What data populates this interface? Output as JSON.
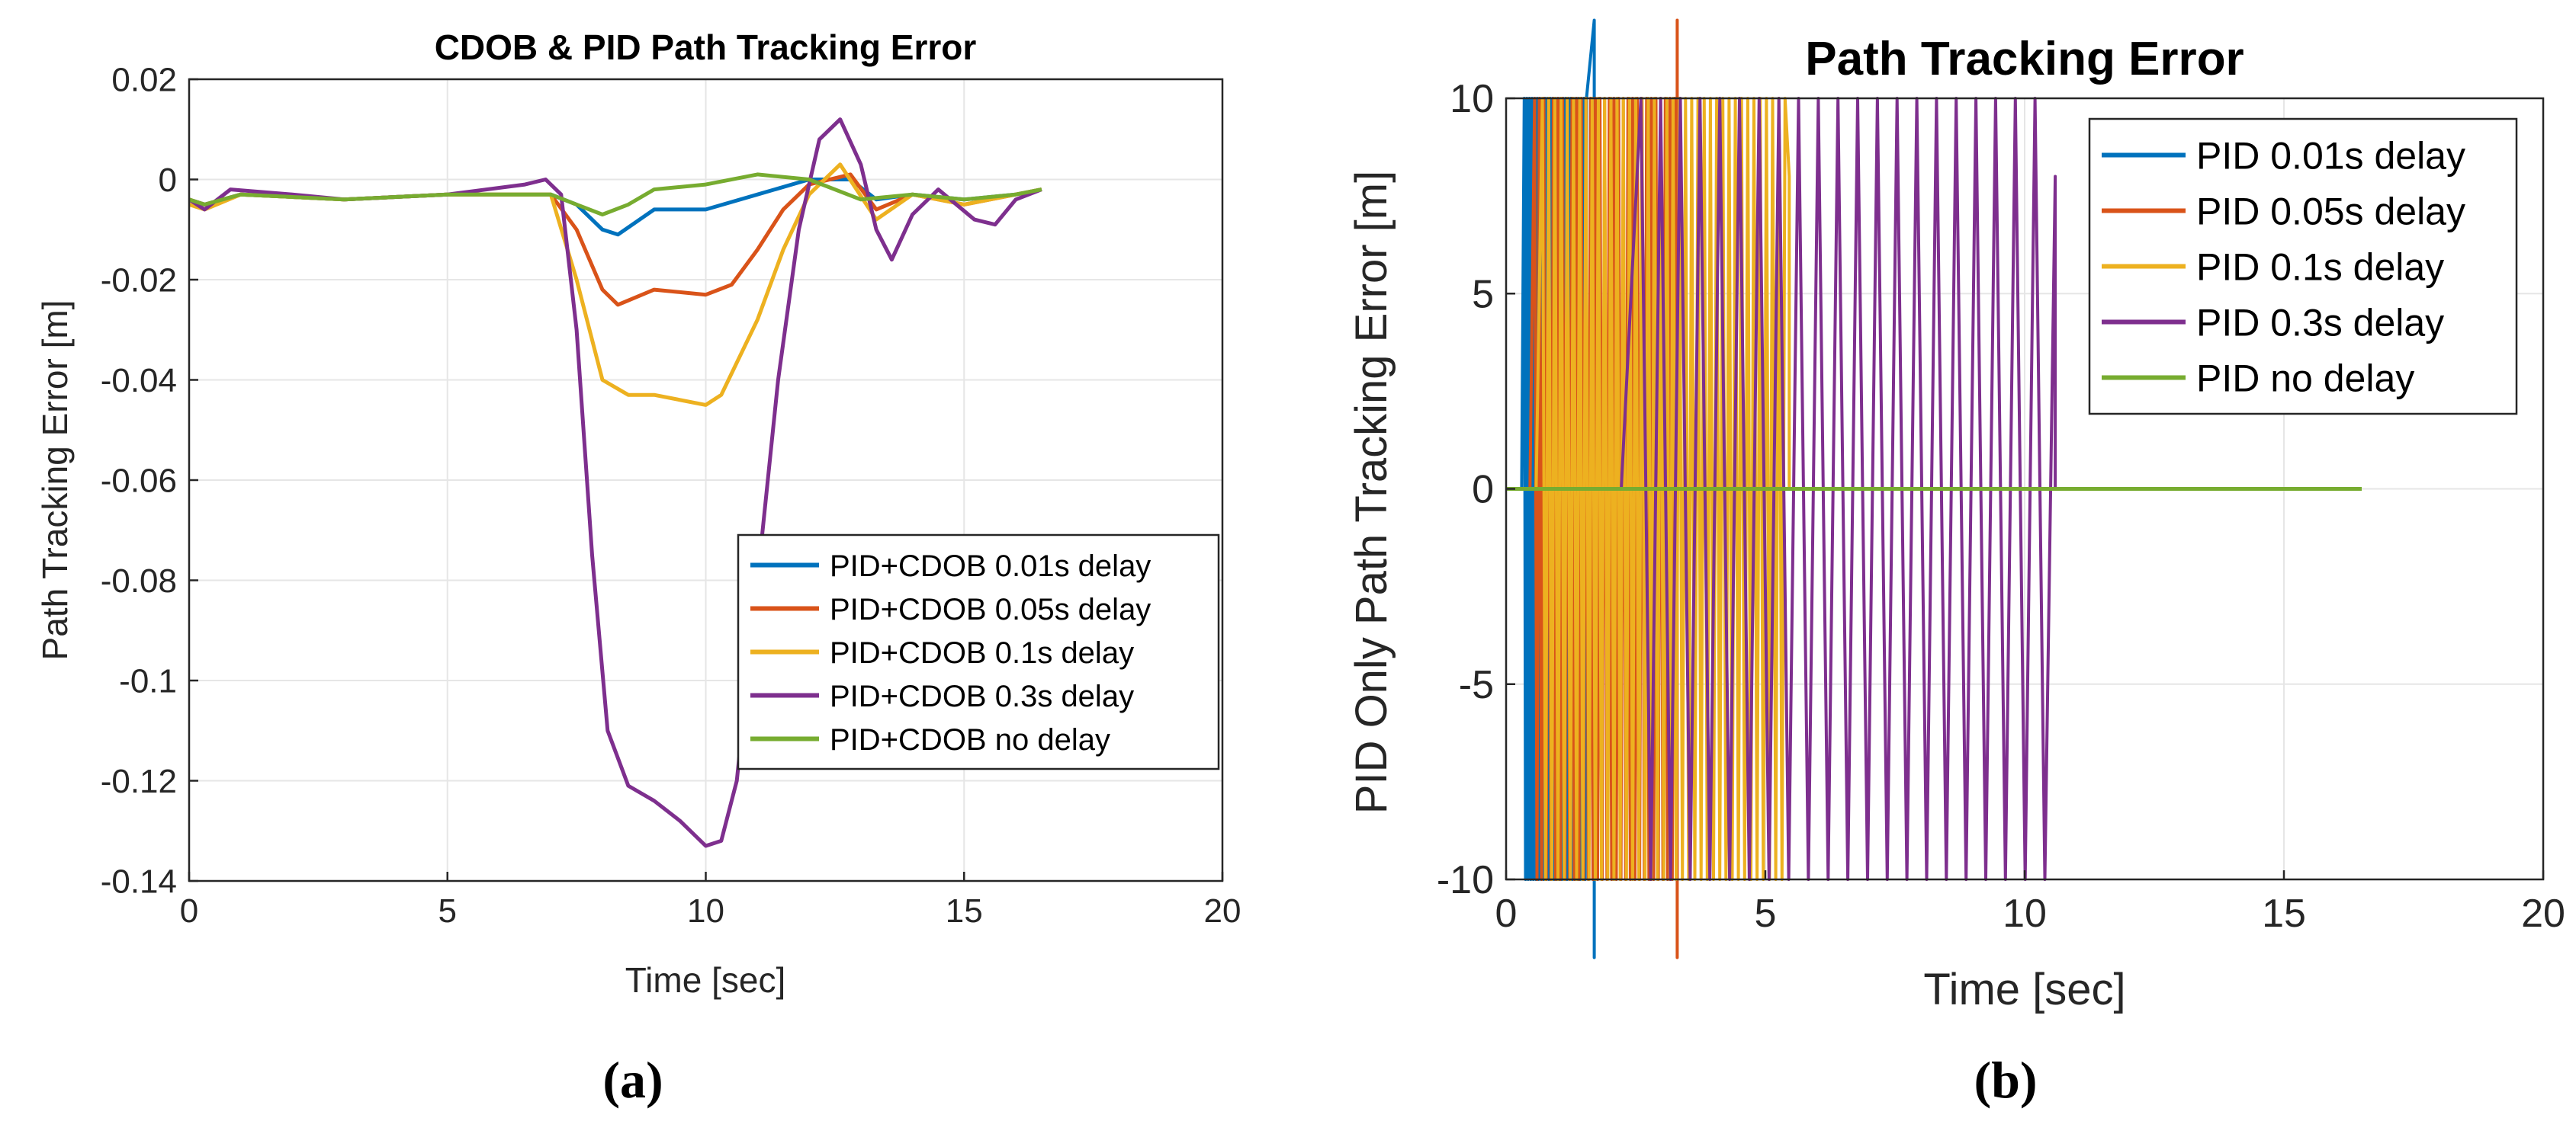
{
  "chart_data": [
    {
      "type": "line",
      "title": "CDOB & PID Path Tracking Error",
      "xlabel": "Time [sec]",
      "ylabel": "Path Tracking Error [m]",
      "xlim": [
        0,
        20
      ],
      "ylim": [
        -0.14,
        0.02
      ],
      "xticks": [
        0,
        5,
        10,
        15,
        20
      ],
      "xtick_labels": [
        "0",
        "5",
        "10",
        "15",
        "20"
      ],
      "yticks": [
        -0.14,
        -0.12,
        -0.1,
        -0.08,
        -0.06,
        -0.04,
        -0.02,
        0,
        0.02
      ],
      "ytick_labels": [
        "-0.14",
        "-0.12",
        "-0.1",
        "-0.08",
        "-0.06",
        "-0.04",
        "-0.02",
        "0",
        "0.02"
      ],
      "grid": true,
      "legend_position": "center-right",
      "caption": "(a)",
      "series": [
        {
          "name": "PID+CDOB 0.01s delay",
          "color": "#0072BD",
          "points": [
            [
              0,
              -0.004
            ],
            [
              0.3,
              -0.005
            ],
            [
              1,
              -0.003
            ],
            [
              3,
              -0.004
            ],
            [
              5,
              -0.003
            ],
            [
              7,
              -0.003
            ],
            [
              7.5,
              -0.005
            ],
            [
              8,
              -0.01
            ],
            [
              8.3,
              -0.011
            ],
            [
              9,
              -0.006
            ],
            [
              10,
              -0.006
            ],
            [
              11,
              -0.003
            ],
            [
              12,
              0.0
            ],
            [
              12.8,
              0.0
            ],
            [
              13.3,
              -0.004
            ],
            [
              14,
              -0.003
            ],
            [
              15,
              -0.004
            ],
            [
              16,
              -0.003
            ],
            [
              16.5,
              -0.002
            ]
          ]
        },
        {
          "name": "PID+CDOB 0.05s delay",
          "color": "#D95319",
          "points": [
            [
              0,
              -0.004
            ],
            [
              0.3,
              -0.005
            ],
            [
              1,
              -0.003
            ],
            [
              3,
              -0.004
            ],
            [
              5,
              -0.003
            ],
            [
              7,
              -0.003
            ],
            [
              7.5,
              -0.01
            ],
            [
              8,
              -0.022
            ],
            [
              8.3,
              -0.025
            ],
            [
              9,
              -0.022
            ],
            [
              10,
              -0.023
            ],
            [
              10.5,
              -0.021
            ],
            [
              11,
              -0.014
            ],
            [
              11.5,
              -0.006
            ],
            [
              12,
              -0.001
            ],
            [
              12.8,
              0.001
            ],
            [
              13.3,
              -0.006
            ],
            [
              14,
              -0.003
            ],
            [
              15,
              -0.005
            ],
            [
              16,
              -0.003
            ],
            [
              16.5,
              -0.002
            ]
          ]
        },
        {
          "name": "PID+CDOB 0.1s delay",
          "color": "#EDB120",
          "points": [
            [
              0,
              -0.005
            ],
            [
              0.3,
              -0.006
            ],
            [
              1,
              -0.003
            ],
            [
              3,
              -0.004
            ],
            [
              5,
              -0.003
            ],
            [
              7,
              -0.003
            ],
            [
              7.5,
              -0.02
            ],
            [
              8,
              -0.04
            ],
            [
              8.5,
              -0.043
            ],
            [
              9,
              -0.043
            ],
            [
              10,
              -0.045
            ],
            [
              10.3,
              -0.043
            ],
            [
              11,
              -0.028
            ],
            [
              11.5,
              -0.014
            ],
            [
              12,
              -0.003
            ],
            [
              12.6,
              0.003
            ],
            [
              13.3,
              -0.008
            ],
            [
              14,
              -0.003
            ],
            [
              15,
              -0.005
            ],
            [
              16,
              -0.003
            ],
            [
              16.5,
              -0.002
            ]
          ]
        },
        {
          "name": "PID+CDOB 0.3s delay",
          "color": "#7E2F8E",
          "points": [
            [
              0,
              -0.004
            ],
            [
              0.3,
              -0.006
            ],
            [
              0.8,
              -0.002
            ],
            [
              2,
              -0.003
            ],
            [
              3,
              -0.004
            ],
            [
              5,
              -0.003
            ],
            [
              6.5,
              -0.001
            ],
            [
              6.9,
              0.0
            ],
            [
              7.2,
              -0.003
            ],
            [
              7.5,
              -0.03
            ],
            [
              7.8,
              -0.075
            ],
            [
              8.1,
              -0.11
            ],
            [
              8.5,
              -0.121
            ],
            [
              9,
              -0.124
            ],
            [
              9.5,
              -0.128
            ],
            [
              10,
              -0.133
            ],
            [
              10.3,
              -0.132
            ],
            [
              10.6,
              -0.12
            ],
            [
              11,
              -0.08
            ],
            [
              11.4,
              -0.04
            ],
            [
              11.8,
              -0.01
            ],
            [
              12.2,
              0.008
            ],
            [
              12.6,
              0.012
            ],
            [
              13,
              0.003
            ],
            [
              13.3,
              -0.01
            ],
            [
              13.6,
              -0.016
            ],
            [
              14,
              -0.007
            ],
            [
              14.5,
              -0.002
            ],
            [
              15.2,
              -0.008
            ],
            [
              15.6,
              -0.009
            ],
            [
              16,
              -0.004
            ],
            [
              16.5,
              -0.002
            ]
          ]
        },
        {
          "name": "PID+CDOB no delay",
          "color": "#77AC30",
          "points": [
            [
              0,
              -0.004
            ],
            [
              0.3,
              -0.005
            ],
            [
              1,
              -0.003
            ],
            [
              3,
              -0.004
            ],
            [
              5,
              -0.003
            ],
            [
              7,
              -0.003
            ],
            [
              7.5,
              -0.005
            ],
            [
              8,
              -0.007
            ],
            [
              8.5,
              -0.005
            ],
            [
              9,
              -0.002
            ],
            [
              10,
              -0.001
            ],
            [
              11,
              0.001
            ],
            [
              12,
              0.0
            ],
            [
              13,
              -0.004
            ],
            [
              14,
              -0.003
            ],
            [
              15,
              -0.004
            ],
            [
              16,
              -0.003
            ],
            [
              16.5,
              -0.002
            ]
          ]
        }
      ]
    },
    {
      "type": "line",
      "title": "Path Tracking Error",
      "xlabel": "Time [sec]",
      "ylabel": "PID Only Path Tracking Error [m]",
      "xlim": [
        0,
        20
      ],
      "ylim": [
        -10,
        10
      ],
      "xticks": [
        0,
        5,
        10,
        15,
        20
      ],
      "xtick_labels": [
        "0",
        "5",
        "10",
        "15",
        "20"
      ],
      "yticks": [
        -10,
        -5,
        0,
        5,
        10
      ],
      "ytick_labels": [
        "-10",
        "-5",
        "0",
        "5",
        "10"
      ],
      "grid": true,
      "legend_position": "top-right",
      "caption": "(b)",
      "series": [
        {
          "name": "PID 0.01s delay",
          "color": "#0072BD",
          "oscillation_start": 0.35,
          "oscillation_end": 1.55,
          "oscillation_period": 0.05,
          "overshoot_spike_time": 1.7
        },
        {
          "name": "PID 0.05s delay",
          "color": "#D95319",
          "oscillation_start": 0.55,
          "oscillation_end": 3.3,
          "oscillation_period": 0.09,
          "overshoot_spike_time": 3.3
        },
        {
          "name": "PID 0.1s delay",
          "color": "#EDB120",
          "oscillation_start": 0.7,
          "oscillation_end": 5.4,
          "oscillation_period": 0.12,
          "last_peak": 8
        },
        {
          "name": "PID 0.3s delay",
          "color": "#7E2F8E",
          "oscillation_start": 2.6,
          "oscillation_end": 10.4,
          "oscillation_period": 0.38,
          "last_peak": 8
        },
        {
          "name": "PID no delay",
          "color": "#77AC30",
          "points": [
            [
              0,
              0
            ],
            [
              16.5,
              0
            ]
          ]
        }
      ]
    }
  ]
}
